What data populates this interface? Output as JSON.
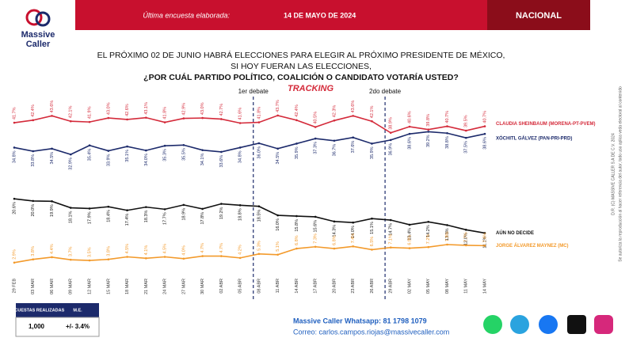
{
  "header": {
    "survey_label": "Última encuesta elaborada:",
    "survey_date": "14 DE MAYO DE 2024",
    "region": "NACIONAL"
  },
  "logo": {
    "line1": "Massive",
    "line2": "Caller"
  },
  "chart_data": {
    "type": "line",
    "title_lines": [
      "EL PRÓXIMO 02 DE JUNIO HABRÁ ELECCIONES PARA ELEGIR AL PRÓXIMO PRESIDENTE DE MÉXICO,",
      "SI HOY FUERAN LAS ELECCIONES,",
      "¿POR CUÁL PARTIDO POLÍTICO, COALICIÓN O CANDIDATO VOTARÍA USTED?"
    ],
    "subtitle": "TRACKING",
    "annotations": [
      "1er debate",
      "2do debate"
    ],
    "x": [
      "29 FEB",
      "03 MAR",
      "06 MAR",
      "09 MAR",
      "12 MAR",
      "15 MAR",
      "18 MAR",
      "21 MAR",
      "24 MAR",
      "27 MAR",
      "30 MAR",
      "02 ABR",
      "05 ABR",
      "08 ABR",
      "11 ABR",
      "14 ABR",
      "17 ABR",
      "20 ABR",
      "23 ABR",
      "26 ABR",
      "29 ABR",
      "02 MAY",
      "05 MAY",
      "08 MAY",
      "11 MAY",
      "14 MAY"
    ],
    "ylim": [
      0,
      45
    ],
    "series": [
      {
        "name": "CLAUDIA SHEINBAUM (MORENA-PT-PVEM)",
        "color": "#d42a3a",
        "values": [
          41.7,
          42.4,
          43.6,
          42.1,
          41.9,
          43.0,
          42.6,
          43.1,
          41.8,
          42.9,
          43.0,
          42.7,
          41.6,
          41.8,
          43.7,
          42.4,
          40.5,
          42.3,
          43.6,
          42.1,
          38.9,
          40.6,
          39.8,
          40.7,
          39.5,
          40.7
        ],
        "value_labels": [
          "41.7%",
          "42.4%",
          "43.6%",
          "42.1%",
          "41.9%",
          "43.0%",
          "42.6%",
          "43.1%",
          "41.8%",
          "42.9%",
          "43.0%",
          "42.7%",
          "41.6%",
          "41.8%",
          "43.7%",
          "42.4%",
          "40.5%",
          "42.3%",
          "43.6%",
          "42.1%",
          "38.9%",
          "40.6%",
          "39.8%",
          "40.7%",
          "39.5%",
          "40.7%"
        ]
      },
      {
        "name": "XÓCHITL GÁLVEZ (PAN-PRI-PRD)",
        "color": "#1c2a6b",
        "values": [
          34.8,
          33.8,
          34.5,
          32.9,
          35.4,
          33.9,
          35.1,
          34.0,
          35.3,
          35.5,
          34.1,
          33.6,
          34.8,
          36.0,
          34.5,
          35.9,
          37.3,
          36.7,
          37.6,
          35.9,
          36.9,
          38.6,
          39.2,
          38.8,
          37.5,
          38.6
        ],
        "value_labels": [
          "34.8%",
          "33.8%",
          "34.5%",
          "32.9%",
          "35.4%",
          "33.9%",
          "35.1%",
          "34.0%",
          "35.3%",
          "35.5%",
          "34.1%",
          "33.6%",
          "34.8%",
          "36.0%",
          "34.5%",
          "35.9%",
          "37.3%",
          "36.7%",
          "37.6%",
          "35.9%",
          "36.9%",
          "38.6%",
          "39.2%",
          "38.8%",
          "37.5%",
          "38.6%"
        ]
      },
      {
        "name": "AÚN NO DECIDE",
        "color": "#111111",
        "values": [
          20.6,
          20.0,
          19.9,
          18.1,
          17.9,
          18.4,
          17.4,
          18.3,
          17.7,
          18.9,
          17.8,
          19.2,
          18.8,
          18.5,
          16.0,
          15.8,
          15.6,
          14.3,
          14.0,
          15.1,
          14.7,
          13.4,
          14.2,
          13.3,
          12.0,
          11.1
        ],
        "value_labels": [
          "20.6%",
          "20.0%",
          "19.9%",
          "18.1%",
          "17.9%",
          "18.4%",
          "17.4%",
          "18.3%",
          "17.7%",
          "18.9%",
          "17.8%",
          "19.2%",
          "18.8%",
          "18.5%",
          "16.0%",
          "15.8%",
          "15.6%",
          "14.3%",
          "14.0%",
          "15.1%",
          "14.7%",
          "13.4%",
          "14.2%",
          "13.3%",
          "12.0%",
          "11.1%"
        ]
      },
      {
        "name": "JORGE ÁLVAREZ MAYNEZ (MC)",
        "color": "#f39a2b",
        "values": [
          2.9,
          3.8,
          4.4,
          3.7,
          3.5,
          3.8,
          4.5,
          4.1,
          4.5,
          4.0,
          4.7,
          4.7,
          4.2,
          5.3,
          5.1,
          6.8,
          7.3,
          6.8,
          7.4,
          6.5,
          7.1,
          6.9,
          7.2,
          7.9,
          7.7,
          7.6
        ],
        "value_labels": [
          "2.9%",
          "3.8%",
          "4.4%",
          "3.7%",
          "3.5%",
          "3.8%",
          "4.5%",
          "4.1%",
          "4.5%",
          "4.0%",
          "4.7%",
          "4.7%",
          "4.2%",
          "5.3%",
          "5.1%",
          "6.8%",
          "7.3%",
          "6.8%",
          "7.4%",
          "6.5%",
          "7.1%",
          "6.9%",
          "7.2%",
          "7.9%",
          "7.7%",
          "7.6%"
        ]
      }
    ]
  },
  "table": {
    "headers": [
      "ENCUESTAS REALIZADAS",
      "M.E."
    ],
    "row": [
      "1,000",
      "+/- 3.4%"
    ]
  },
  "contact": {
    "whatsapp": "Massive Caller Whatsapp: 81 1798 1079",
    "email": "Correo: carlos.campos.riojas@massivecaller.com"
  },
  "side_note": [
    "D.R. (C) MASSIVE CALLER S.A DE C.V. 2024",
    "Se autoriza la reproducción al hacer referencia del autor, todo uso aplica veda electoral al contenido"
  ]
}
